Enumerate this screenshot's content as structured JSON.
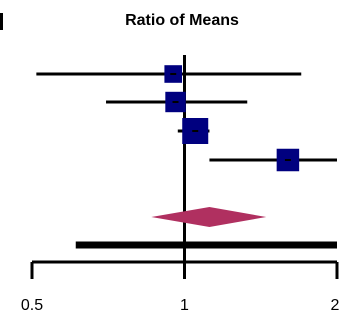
{
  "chart_data": {
    "type": "forest",
    "title": "Ratio of Means",
    "x_scale": "log",
    "xlim": [
      0.5,
      2
    ],
    "x_ticks": [
      {
        "value": 0.5,
        "label": "0.5"
      },
      {
        "value": 1,
        "label": "1"
      },
      {
        "value": 2,
        "label": "2"
      }
    ],
    "reference_line": 1,
    "studies": [
      {
        "estimate": 0.95,
        "ci_low": 0.51,
        "ci_high": 1.7,
        "weight": 0.4
      },
      {
        "estimate": 0.96,
        "ci_low": 0.7,
        "ci_high": 1.33,
        "weight": 0.6
      },
      {
        "estimate": 1.05,
        "ci_low": 0.97,
        "ci_high": 1.12,
        "weight": 1.0
      },
      {
        "estimate": 1.6,
        "ci_low": 1.12,
        "ci_high": 2.0,
        "weight": 0.75
      }
    ],
    "pooled": {
      "estimate": 1.12,
      "ci_low": 0.86,
      "ci_high": 1.45
    },
    "prediction_interval": {
      "low": 0.61,
      "high": 2.0
    },
    "colors": {
      "study_marker": "#00007f",
      "pooled": "#b03060",
      "lines": "#000000"
    }
  }
}
